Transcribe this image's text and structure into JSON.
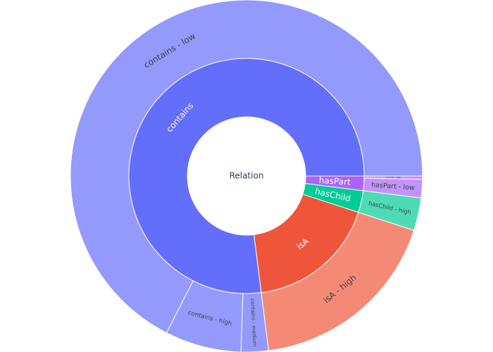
{
  "chart_data": {
    "type": "sunburst",
    "root": {
      "label": "Relation",
      "color": "#ffffff",
      "children": [
        {
          "label": "hasPart",
          "value": 2,
          "color": "#ab63fa",
          "children": [
            {
              "label": "hasPart - high",
              "value": 0.3,
              "color": "#c492fb"
            },
            {
              "label": "hasPart - low",
              "value": 1.7,
              "color": "#c492fb"
            }
          ]
        },
        {
          "label": "hasChild",
          "value": 3,
          "color": "#00cc96",
          "children": [
            {
              "label": "hasChild - high",
              "value": 3,
              "color": "#4ddbb6"
            }
          ]
        },
        {
          "label": "isA",
          "value": 18,
          "color": "#ef553b",
          "children": [
            {
              "label": "isA - high",
              "value": 18,
              "color": "#f48a76"
            }
          ]
        },
        {
          "label": "contains",
          "value": 77,
          "color": "#636efa",
          "children": [
            {
              "label": "contains - medium",
              "value": 2.5,
              "color": "#939afb"
            },
            {
              "label": "contains - high",
              "value": 7,
              "color": "#939afb"
            },
            {
              "label": "contains - low",
              "value": 67.5,
              "color": "#939afb"
            }
          ]
        }
      ]
    }
  }
}
